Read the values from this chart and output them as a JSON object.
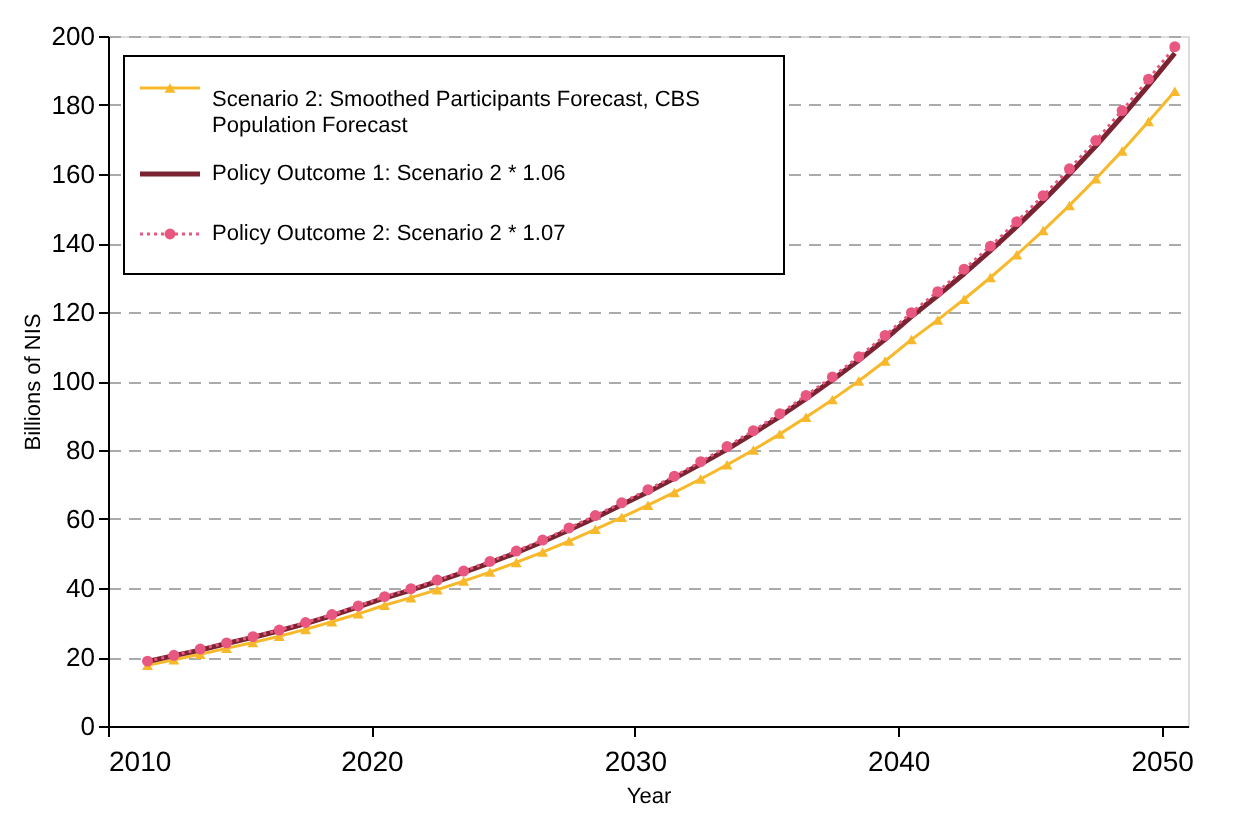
{
  "chart_data": {
    "type": "line",
    "xlabel": "Year",
    "ylabel": "Billions of NIS",
    "x": [
      2011.5,
      2012.5,
      2013.5,
      2014.5,
      2015.5,
      2016.5,
      2017.5,
      2018.5,
      2019.5,
      2020.5,
      2021.5,
      2022.5,
      2023.5,
      2024.5,
      2025.5,
      2026.5,
      2027.5,
      2028.5,
      2029.5,
      2030.5,
      2031.5,
      2032.5,
      2033.5,
      2034.5,
      2035.5,
      2036.5,
      2037.5,
      2038.5,
      2039.5,
      2040.5,
      2041.5,
      2042.5,
      2043.5,
      2044.5,
      2045.5,
      2046.5,
      2047.5,
      2048.5,
      2049.5,
      2050.5
    ],
    "series": [
      {
        "name": "Scenario 2: Smoothed Participants Forecast, CBS Population Forecast",
        "color": "#f7b92b",
        "marker": "triangle",
        "line_style": "solid",
        "values": [
          17.6,
          19.2,
          20.8,
          22.5,
          24.2,
          26.0,
          28.0,
          30.2,
          32.5,
          35.0,
          37.2,
          39.5,
          42.0,
          44.6,
          47.4,
          50.4,
          53.6,
          57.0,
          60.5,
          64.0,
          67.7,
          71.6,
          75.7,
          80.0,
          84.6,
          89.5,
          94.6,
          100.0,
          105.8,
          112.0,
          117.7,
          123.7,
          130.0,
          136.6,
          143.6,
          150.9,
          158.6,
          166.7,
          175.2,
          184.0
        ]
      },
      {
        "name": "Policy Outcome 1: Scenario 2 * 1.06",
        "color": "#7a2432",
        "marker": "none",
        "line_style": "solid",
        "values": [
          18.7,
          20.4,
          22.0,
          23.9,
          25.7,
          27.6,
          29.7,
          32.0,
          34.5,
          37.1,
          39.4,
          41.9,
          44.5,
          47.3,
          50.2,
          53.4,
          56.8,
          60.4,
          64.1,
          67.8,
          71.8,
          75.9,
          80.2,
          84.8,
          89.7,
          94.9,
          100.3,
          106.0,
          112.1,
          118.7,
          124.8,
          131.1,
          137.8,
          144.8,
          152.2,
          160.0,
          168.1,
          176.7,
          185.7,
          195.0
        ]
      },
      {
        "name": "Policy Outcome 2: Scenario 2 * 1.07",
        "color": "#e8577f",
        "marker": "circle",
        "line_style": "dotted",
        "values": [
          18.8,
          20.5,
          22.3,
          24.1,
          25.9,
          27.8,
          30.0,
          32.3,
          34.8,
          37.5,
          39.8,
          42.3,
          44.9,
          47.7,
          50.7,
          53.9,
          57.4,
          61.0,
          64.7,
          68.5,
          72.4,
          76.6,
          81.0,
          85.6,
          90.5,
          95.8,
          101.2,
          107.0,
          113.2,
          119.8,
          125.9,
          132.4,
          139.1,
          146.2,
          153.7,
          161.5,
          169.7,
          178.4,
          187.5,
          196.9
        ]
      }
    ],
    "xlim": [
      2010,
      2051
    ],
    "xticks": [
      2010,
      2020,
      2030,
      2040,
      2050
    ],
    "ylim": [
      0,
      200
    ],
    "yticks": [
      0,
      20,
      40,
      60,
      80,
      100,
      120,
      140,
      160,
      180,
      200
    ],
    "grid": "y",
    "legend": "top left"
  }
}
